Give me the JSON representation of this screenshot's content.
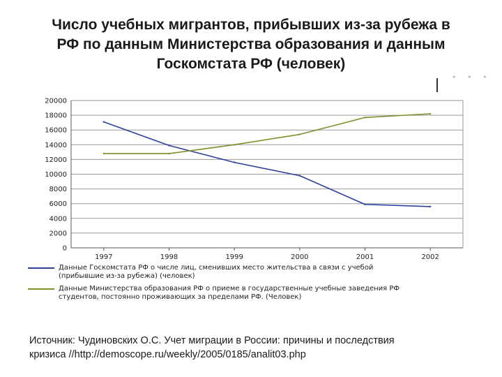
{
  "title": {
    "line1": "Число учебных мигрантов, прибывших из-за рубежа в",
    "line2": "РФ по данным Министерства образования и данным",
    "line3": "Госкомстата РФ (человек)"
  },
  "chart_data": {
    "type": "line",
    "x": [
      "1997",
      "1998",
      "1999",
      "2000",
      "2001",
      "2002"
    ],
    "ylim": [
      0,
      20000
    ],
    "yticks": [
      "0",
      "2000",
      "4000",
      "6000",
      "8000",
      "10000",
      "12000",
      "14000",
      "16000",
      "18000",
      "20000"
    ],
    "grid": true,
    "legend_position": "bottom",
    "series": [
      {
        "name_line1": "Данные Госкомстата РФ о числе лиц, сменивших место жительства в связи с учебой",
        "name_line2": "(прибывшие из-за рубежа) (человек)",
        "color": "#2b3f9e",
        "values": [
          17100,
          13900,
          11600,
          9800,
          5900,
          5600
        ]
      },
      {
        "name_line1": "Данные Министерства образования РФ о приеме в государственные учебные заведения РФ",
        "name_line2": "студентов, постоянно проживающих за пределами РФ. (Человек)",
        "color": "#7f8f2a",
        "values": [
          12800,
          12800,
          14000,
          15400,
          17700,
          18200
        ]
      }
    ]
  },
  "source": {
    "line1": "Источник: Чудиновских О.С. Учет миграции в России: причины и последствия",
    "line2": "кризиса //http://demoscope.ru/weekly/2005/0185/analit03.php"
  }
}
